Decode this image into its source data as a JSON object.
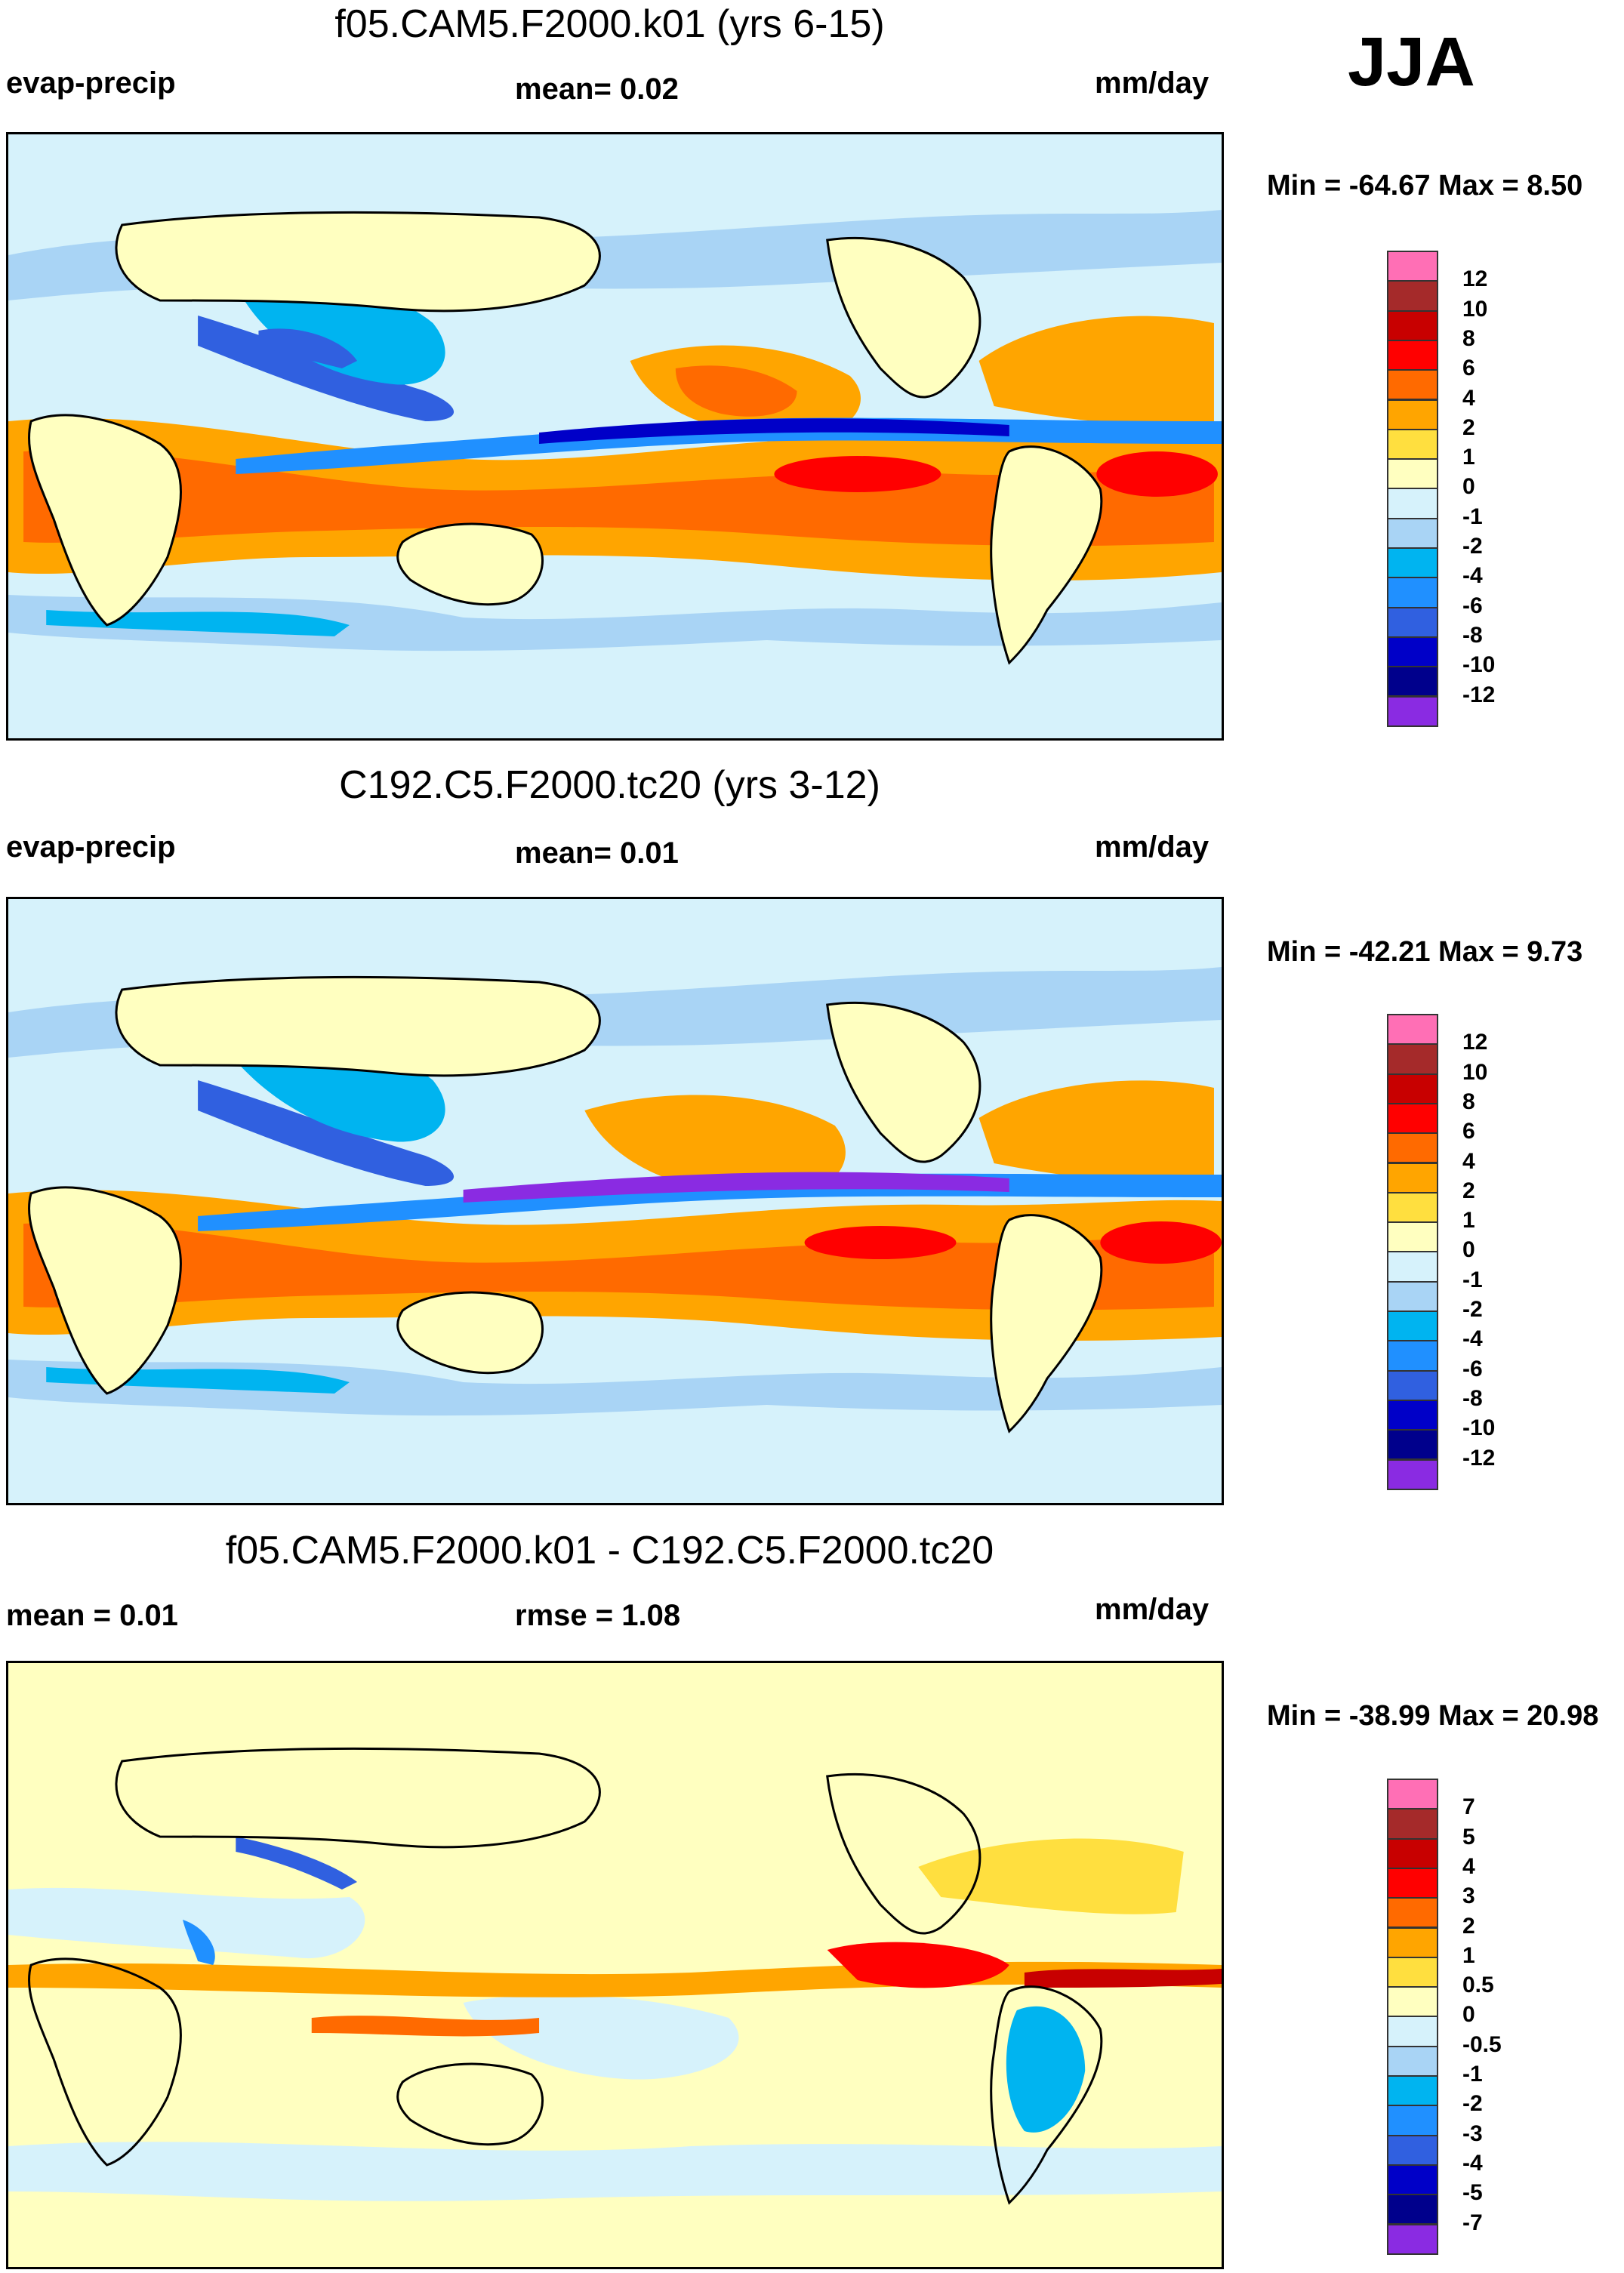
{
  "season": "JJA",
  "units": "mm/day",
  "panels": [
    {
      "title": "f05.CAM5.F2000.k01 (yrs 6-15)",
      "left_label": "evap-precip",
      "center_label": "mean=   0.02",
      "right_label": "mm/day",
      "minmax": "Min = -64.67 Max =    8.50"
    },
    {
      "title": "C192.C5.F2000.tc20 (yrs 3-12)",
      "left_label": "evap-precip",
      "center_label": "mean=   0.01",
      "right_label": "mm/day",
      "minmax": "Min = -42.21 Max =    9.73"
    },
    {
      "title": "f05.CAM5.F2000.k01 - C192.C5.F2000.tc20",
      "left_label": "mean =   0.01",
      "center_label": "rmse =   1.08",
      "right_label": "mm/day",
      "minmax": "Min = -38.99 Max =  20.98"
    }
  ],
  "legend_abs": {
    "labels": [
      "12",
      "10",
      "8",
      "6",
      "4",
      "2",
      "1",
      "0",
      "-1",
      "-2",
      "-4",
      "-6",
      "-8",
      "-10",
      "-12"
    ],
    "colors": [
      "#ff6fb5",
      "#a52a2a",
      "#c80000",
      "#ff0000",
      "#ff6a00",
      "#ffa500",
      "#ffdf3f",
      "#ffffc0",
      "#d6f2fb",
      "#a9d4f5",
      "#00b4f0",
      "#2090ff",
      "#3060e0",
      "#0000c8",
      "#00008c",
      "#8a2be2"
    ]
  },
  "legend_diff": {
    "labels": [
      "7",
      "5",
      "4",
      "3",
      "2",
      "1",
      "0.5",
      "0",
      "-0.5",
      "-1",
      "-2",
      "-3",
      "-4",
      "-5",
      "-7"
    ],
    "colors": [
      "#ff6fb5",
      "#a52a2a",
      "#c80000",
      "#ff0000",
      "#ff6a00",
      "#ffa500",
      "#ffdf3f",
      "#ffffc0",
      "#d6f2fb",
      "#a9d4f5",
      "#00b4f0",
      "#2090ff",
      "#3060e0",
      "#0000c8",
      "#00008c",
      "#8a2be2"
    ]
  }
}
